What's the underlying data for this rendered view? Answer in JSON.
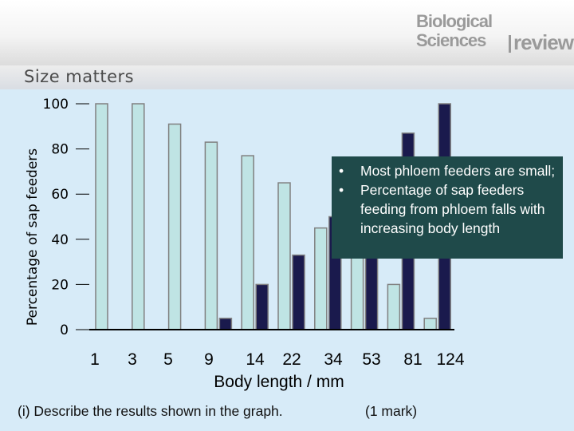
{
  "header": {
    "brand_line1": "Biological",
    "brand_line2": "Sciences",
    "brand_line3": "review"
  },
  "subtitle": "Size matters",
  "chart_data": {
    "type": "bar",
    "title": "",
    "xlabel": "Body length / mm",
    "ylabel": "Percentage of sap feeders",
    "ylim": [
      0,
      100
    ],
    "yticks": [
      0,
      20,
      40,
      60,
      80,
      100
    ],
    "grid": false,
    "categories": [
      "1",
      "3",
      "5",
      "9",
      "14",
      "22",
      "34",
      "53",
      "81",
      "124"
    ],
    "series": [
      {
        "color": "#bfe4e4",
        "values": [
          100,
          100,
          91,
          83,
          77,
          65,
          45,
          36,
          20,
          5
        ]
      },
      {
        "color": "#1a1a4d",
        "values": [
          0,
          0,
          0,
          5,
          20,
          33,
          50,
          60,
          87,
          100
        ]
      }
    ]
  },
  "annotation": {
    "items": [
      "Most phloem feeders are small;",
      "Percentage of sap feeders feeding from phloem falls with increasing body length"
    ]
  },
  "question": "(i) Describe the results shown in the graph.",
  "marks": "(1 mark)",
  "colors": {
    "background": "#d7ebf8",
    "annotation_box": "#1f4a4a",
    "xylem_bar": "#bfe4e4",
    "phloem_bar": "#1a1a4d"
  }
}
